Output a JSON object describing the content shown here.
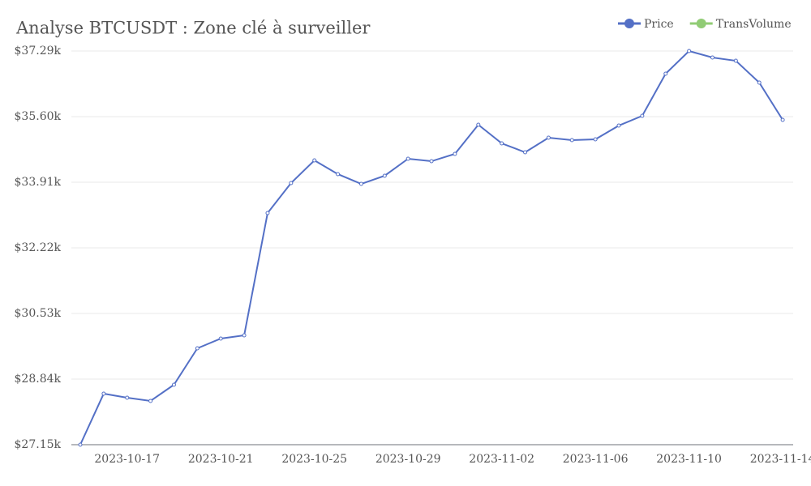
{
  "chart_data": {
    "type": "line",
    "title": "Analyse BTCUSDT : Zone clé à surveiller",
    "x": [
      "2023-10-15",
      "2023-10-16",
      "2023-10-17",
      "2023-10-18",
      "2023-10-19",
      "2023-10-20",
      "2023-10-21",
      "2023-10-22",
      "2023-10-23",
      "2023-10-24",
      "2023-10-25",
      "2023-10-26",
      "2023-10-27",
      "2023-10-28",
      "2023-10-29",
      "2023-10-30",
      "2023-10-31",
      "2023-11-01",
      "2023-11-02",
      "2023-11-03",
      "2023-11-04",
      "2023-11-05",
      "2023-11-06",
      "2023-11-07",
      "2023-11-08",
      "2023-11-09",
      "2023-11-10",
      "2023-11-11",
      "2023-11-12",
      "2023-11-13",
      "2023-11-14"
    ],
    "series": [
      {
        "name": "Price",
        "color": "#5470c6",
        "values": [
          27150,
          28464,
          28360,
          28277,
          28694,
          29633,
          29883,
          29967,
          33117,
          33889,
          34473,
          34119,
          33868,
          34077,
          34515,
          34452,
          34640,
          35391,
          34911,
          34682,
          35057,
          34995,
          35016,
          35370,
          35621,
          36706,
          37290,
          37123,
          37039,
          36476,
          35516
        ]
      },
      {
        "name": "TransVolume",
        "color": "#91cc75",
        "values": [
          null,
          null,
          null,
          null,
          null,
          null,
          null,
          null,
          null,
          null,
          null,
          null,
          null,
          null,
          null,
          null,
          null,
          null,
          null,
          null,
          null,
          null,
          null,
          null,
          null,
          null,
          null,
          null,
          null,
          null,
          null
        ]
      }
    ],
    "xticks": [
      "2023-10-17",
      "2023-10-21",
      "2023-10-25",
      "2023-10-29",
      "2023-11-02",
      "2023-11-06",
      "2023-11-10",
      "2023-11-14"
    ],
    "ylim": [
      27150,
      37290
    ],
    "yticks": [
      {
        "value": 27150,
        "label": "$27.15k"
      },
      {
        "value": 28840,
        "label": "$28.84k"
      },
      {
        "value": 30530,
        "label": "$30.53k"
      },
      {
        "value": 32220,
        "label": "$32.22k"
      },
      {
        "value": 33910,
        "label": "$33.91k"
      },
      {
        "value": 35600,
        "label": "$35.60k"
      },
      {
        "value": 37290,
        "label": "$37.29k"
      }
    ],
    "grid": true,
    "legend": "top-right"
  }
}
